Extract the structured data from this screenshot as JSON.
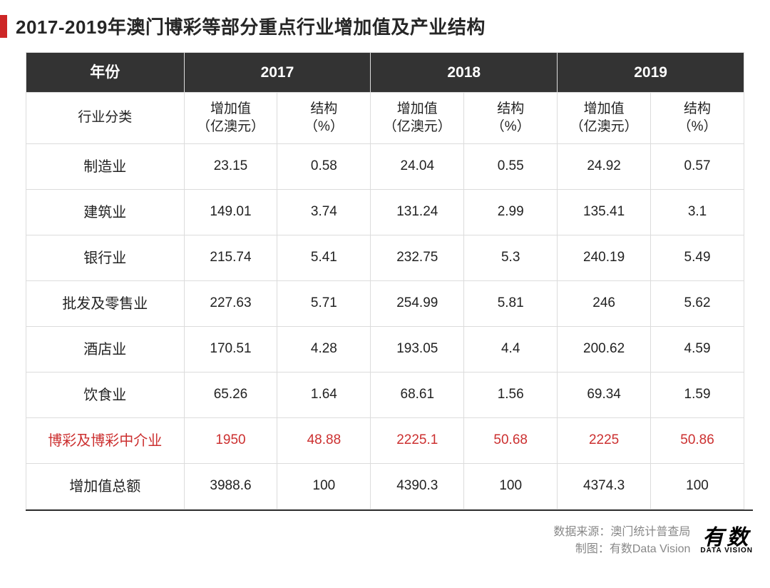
{
  "title": "2017-2019年澳门博彩等部分重点行业增加值及产业结构",
  "colors": {
    "accent": "#cd2626",
    "title_text": "#262626",
    "header_bg": "#333333",
    "header_text": "#ffffff",
    "border": "#dcdcdc",
    "highlight_text": "#cc3030"
  },
  "table": {
    "type": "table",
    "header_row1": {
      "year_label": "年份",
      "years": [
        "2017",
        "2018",
        "2019"
      ]
    },
    "header_row2": {
      "industry_label": "行业分类",
      "value_label": "增加值\n（亿澳元）",
      "structure_label": "结构\n（%）"
    },
    "rows": [
      {
        "label": "制造业",
        "v2017": "23.15",
        "p2017": "0.58",
        "v2018": "24.04",
        "p2018": "0.55",
        "v2019": "24.92",
        "p2019": "0.57",
        "highlight": false
      },
      {
        "label": "建筑业",
        "v2017": "149.01",
        "p2017": "3.74",
        "v2018": "131.24",
        "p2018": "2.99",
        "v2019": "135.41",
        "p2019": "3.1",
        "highlight": false
      },
      {
        "label": "银行业",
        "v2017": "215.74",
        "p2017": "5.41",
        "v2018": "232.75",
        "p2018": "5.3",
        "v2019": "240.19",
        "p2019": "5.49",
        "highlight": false
      },
      {
        "label": "批发及零售业",
        "v2017": "227.63",
        "p2017": "5.71",
        "v2018": "254.99",
        "p2018": "5.81",
        "v2019": "246",
        "p2019": "5.62",
        "highlight": false
      },
      {
        "label": "酒店业",
        "v2017": "170.51",
        "p2017": "4.28",
        "v2018": "193.05",
        "p2018": "4.4",
        "v2019": "200.62",
        "p2019": "4.59",
        "highlight": false
      },
      {
        "label": "饮食业",
        "v2017": "65.26",
        "p2017": "1.64",
        "v2018": "68.61",
        "p2018": "1.56",
        "v2019": "69.34",
        "p2019": "1.59",
        "highlight": false
      },
      {
        "label": "博彩及博彩中介业",
        "v2017": "1950",
        "p2017": "48.88",
        "v2018": "2225.1",
        "p2018": "50.68",
        "v2019": "2225",
        "p2019": "50.86",
        "highlight": true
      },
      {
        "label": "增加值总额",
        "v2017": "3988.6",
        "p2017": "100",
        "v2018": "4390.3",
        "p2018": "100",
        "v2019": "4374.3",
        "p2019": "100",
        "highlight": false
      }
    ]
  },
  "footer": {
    "source_label": "数据来源：",
    "source_value": "澳门统计普查局",
    "credit_label": "制图：",
    "credit_value": "有数Data Vision",
    "logo_main": "有数",
    "logo_sub": "DATA VISION"
  }
}
